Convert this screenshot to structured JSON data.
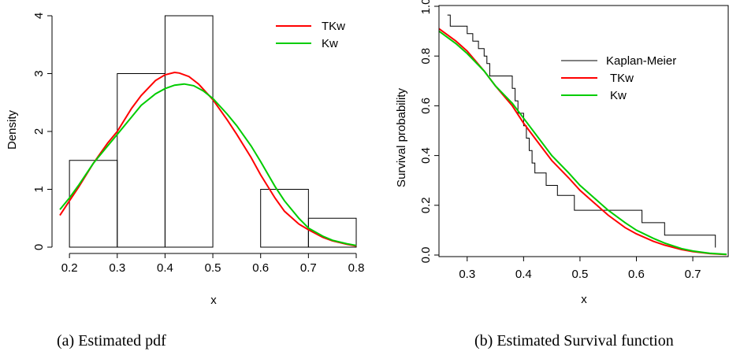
{
  "chart_data": [
    {
      "type": "histogram",
      "caption": "(a)  Estimated pdf",
      "xlabel": "x",
      "ylabel": "Density",
      "xlim": [
        0.18,
        0.8
      ],
      "ylim": [
        0,
        4
      ],
      "xticks": [
        "0.2",
        "0.3",
        "0.4",
        "0.5",
        "0.6",
        "0.7",
        "0.8"
      ],
      "yticks": [
        "0",
        "1",
        "2",
        "3",
        "4"
      ],
      "bins": [
        {
          "from": 0.2,
          "to": 0.3,
          "density": 1.5
        },
        {
          "from": 0.3,
          "to": 0.4,
          "density": 3.0
        },
        {
          "from": 0.4,
          "to": 0.5,
          "density": 4.0
        },
        {
          "from": 0.5,
          "to": 0.6,
          "density": 0.0
        },
        {
          "from": 0.6,
          "to": 0.7,
          "density": 1.0
        },
        {
          "from": 0.7,
          "to": 0.8,
          "density": 0.5
        }
      ],
      "legend_position": "top-right",
      "series": [
        {
          "name": "TKw",
          "color": "#ff0000",
          "x": [
            0.18,
            0.2,
            0.22,
            0.25,
            0.28,
            0.3,
            0.33,
            0.35,
            0.38,
            0.4,
            0.42,
            0.43,
            0.45,
            0.47,
            0.5,
            0.53,
            0.55,
            0.58,
            0.6,
            0.63,
            0.65,
            0.68,
            0.7,
            0.73,
            0.75,
            0.78,
            0.8
          ],
          "y": [
            0.55,
            0.8,
            1.05,
            1.45,
            1.8,
            2.0,
            2.4,
            2.62,
            2.88,
            2.98,
            3.02,
            3.01,
            2.95,
            2.82,
            2.55,
            2.2,
            1.95,
            1.55,
            1.25,
            0.85,
            0.62,
            0.4,
            0.3,
            0.17,
            0.11,
            0.05,
            0.02
          ]
        },
        {
          "name": "Kw",
          "color": "#00cc00",
          "x": [
            0.18,
            0.2,
            0.22,
            0.25,
            0.28,
            0.3,
            0.33,
            0.35,
            0.38,
            0.4,
            0.42,
            0.44,
            0.46,
            0.48,
            0.5,
            0.53,
            0.55,
            0.58,
            0.6,
            0.63,
            0.65,
            0.68,
            0.7,
            0.73,
            0.75,
            0.78,
            0.8
          ],
          "y": [
            0.65,
            0.85,
            1.08,
            1.45,
            1.75,
            1.95,
            2.25,
            2.45,
            2.65,
            2.74,
            2.8,
            2.82,
            2.79,
            2.7,
            2.57,
            2.3,
            2.1,
            1.75,
            1.48,
            1.05,
            0.8,
            0.5,
            0.33,
            0.19,
            0.12,
            0.06,
            0.03
          ]
        }
      ]
    },
    {
      "type": "line",
      "caption": "(b) Estimated Survival function",
      "xlabel": "x",
      "ylabel": "Survival probability",
      "xlim": [
        0.25,
        0.76
      ],
      "ylim": [
        0,
        1
      ],
      "xticks": [
        "0.3",
        "0.4",
        "0.5",
        "0.6",
        "0.7"
      ],
      "yticks": [
        "0.0",
        "0.2",
        "0.4",
        "0.6",
        "0.8",
        "1.0"
      ],
      "legend_position": "top-right",
      "series": [
        {
          "name": "Kaplan-Meier",
          "color": "#000000",
          "step": true,
          "x": [
            0.265,
            0.27,
            0.3,
            0.31,
            0.32,
            0.33,
            0.335,
            0.34,
            0.38,
            0.385,
            0.39,
            0.4,
            0.405,
            0.41,
            0.415,
            0.42,
            0.44,
            0.46,
            0.49,
            0.505,
            0.52,
            0.61,
            0.615,
            0.65,
            0.655,
            0.74
          ],
          "y": [
            0.965,
            0.92,
            0.89,
            0.86,
            0.83,
            0.8,
            0.77,
            0.72,
            0.67,
            0.62,
            0.57,
            0.52,
            0.47,
            0.42,
            0.37,
            0.33,
            0.28,
            0.24,
            0.18,
            0.18,
            0.18,
            0.13,
            0.13,
            0.08,
            0.08,
            0.03
          ]
        },
        {
          "name": "TKw",
          "color": "#ff0000",
          "x": [
            0.25,
            0.28,
            0.3,
            0.33,
            0.35,
            0.38,
            0.4,
            0.43,
            0.45,
            0.48,
            0.5,
            0.53,
            0.55,
            0.58,
            0.6,
            0.63,
            0.65,
            0.68,
            0.7,
            0.73,
            0.76
          ],
          "y": [
            0.91,
            0.86,
            0.82,
            0.74,
            0.68,
            0.6,
            0.53,
            0.44,
            0.38,
            0.31,
            0.26,
            0.2,
            0.16,
            0.11,
            0.085,
            0.055,
            0.04,
            0.022,
            0.014,
            0.006,
            0.002
          ]
        },
        {
          "name": "Kw",
          "color": "#00cc00",
          "x": [
            0.25,
            0.28,
            0.3,
            0.33,
            0.35,
            0.38,
            0.4,
            0.43,
            0.45,
            0.48,
            0.5,
            0.53,
            0.55,
            0.58,
            0.6,
            0.63,
            0.65,
            0.68,
            0.7,
            0.73,
            0.76
          ],
          "y": [
            0.9,
            0.85,
            0.81,
            0.74,
            0.68,
            0.61,
            0.55,
            0.46,
            0.4,
            0.33,
            0.28,
            0.22,
            0.18,
            0.13,
            0.1,
            0.067,
            0.048,
            0.026,
            0.016,
            0.007,
            0.003
          ]
        }
      ]
    }
  ]
}
